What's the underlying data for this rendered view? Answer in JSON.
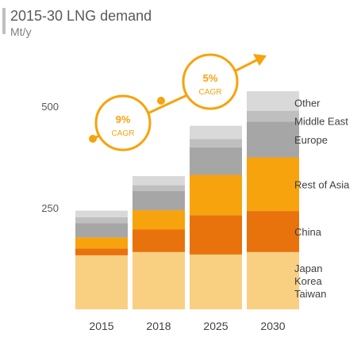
{
  "chart_data": {
    "type": "bar",
    "stacked": true,
    "title": "2015-30 LNG demand",
    "subtitle": "Mt/y",
    "categories": [
      "2015",
      "2018",
      "2025",
      "2030"
    ],
    "y_ticks": [
      "250",
      "500"
    ],
    "ylim": [
      0,
      600
    ],
    "grid": false,
    "series": [
      {
        "name": "Japan Korea Taiwan",
        "label_lines": [
          "Japan",
          "Korea",
          "Taiwan"
        ],
        "color": "#f9cf82",
        "values": [
          133,
          141,
          135,
          141
        ]
      },
      {
        "name": "China",
        "label_lines": [
          "China"
        ],
        "color": "#e8720c",
        "values": [
          17,
          56,
          97,
          101
        ]
      },
      {
        "name": "Rest of Asia",
        "label_lines": [
          "Rest of Asia"
        ],
        "color": "#f7a30d",
        "values": [
          27,
          47,
          99,
          132
        ]
      },
      {
        "name": "Europe",
        "label_lines": [
          "Europe"
        ],
        "color": "#a6a6a6",
        "values": [
          35,
          47,
          68,
          88
        ]
      },
      {
        "name": "Middle East",
        "label_lines": [
          "Middle East"
        ],
        "color": "#bfbfbf",
        "values": [
          15,
          15,
          20,
          27
        ]
      },
      {
        "name": "Other",
        "label_lines": [
          "Other"
        ],
        "color": "#d9d9d9",
        "values": [
          16,
          22,
          33,
          48
        ]
      }
    ],
    "annotations": [
      {
        "value": "9%",
        "label": "CAGR"
      },
      {
        "value": "5%",
        "label": "CAGR"
      }
    ],
    "accent_color": "#f7a30d"
  }
}
